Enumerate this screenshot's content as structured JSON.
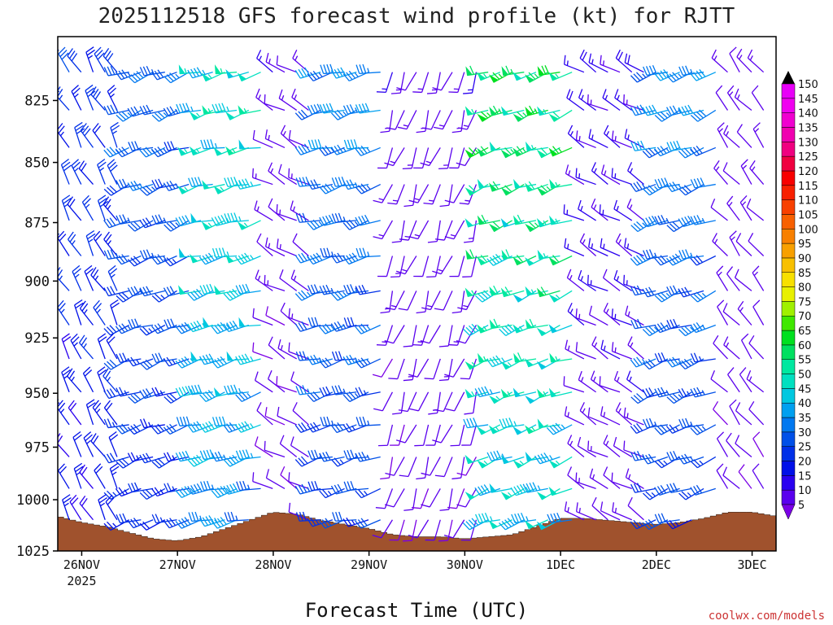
{
  "chart_data": {
    "type": "wind-barb-time-height",
    "title": "2025112518 GFS forecast wind profile (kt) for RJTT",
    "xlabel": "Forecast Time (UTC)",
    "ylabel": "",
    "credit": "coolwx.com/models",
    "x_ticks": [
      {
        "label": "26NOV",
        "sub": "2025",
        "hour": 6
      },
      {
        "label": "27NOV",
        "sub": "",
        "hour": 30
      },
      {
        "label": "28NOV",
        "sub": "",
        "hour": 54
      },
      {
        "label": "29NOV",
        "sub": "",
        "hour": 78
      },
      {
        "label": "30NOV",
        "sub": "",
        "hour": 102
      },
      {
        "label": "1DEC",
        "sub": "",
        "hour": 126
      },
      {
        "label": "2DEC",
        "sub": "",
        "hour": 150
      },
      {
        "label": "3DEC",
        "sub": "",
        "hour": 174
      }
    ],
    "x_range_hours": [
      0,
      180
    ],
    "y_ticks": [
      825,
      850,
      875,
      900,
      925,
      950,
      975,
      1000,
      1025
    ],
    "y_range_hpa": [
      800,
      1025
    ],
    "barb_levels_hpa": [
      810,
      825,
      840,
      855,
      870,
      885,
      900,
      915,
      930,
      945,
      960,
      975,
      990,
      1005
    ],
    "barb_step_hours": 3,
    "colorbar": {
      "levels": [
        5,
        10,
        15,
        20,
        25,
        30,
        35,
        40,
        45,
        50,
        55,
        60,
        65,
        70,
        75,
        80,
        85,
        90,
        95,
        100,
        105,
        110,
        115,
        120,
        125,
        130,
        135,
        140,
        145,
        150
      ],
      "colors": [
        "#7a00e6",
        "#5a00ee",
        "#2a00f0",
        "#0010e8",
        "#0030e8",
        "#0050e8",
        "#0078f0",
        "#00a0f0",
        "#00c8e0",
        "#00e0c0",
        "#00e8a0",
        "#00e060",
        "#00e020",
        "#40e800",
        "#a0f000",
        "#e8f000",
        "#f8e000",
        "#f8c000",
        "#f8a000",
        "#f88000",
        "#f86000",
        "#f84000",
        "#f82000",
        "#f80000",
        "#f00040",
        "#f00080",
        "#f000b0",
        "#f000d0",
        "#f000f0",
        "#e800f8"
      ]
    },
    "surface_pressure_hpa": [
      {
        "h": 0,
        "p": 1008
      },
      {
        "h": 6,
        "p": 1011
      },
      {
        "h": 12,
        "p": 1013
      },
      {
        "h": 18,
        "p": 1016
      },
      {
        "h": 24,
        "p": 1019
      },
      {
        "h": 30,
        "p": 1020
      },
      {
        "h": 36,
        "p": 1018
      },
      {
        "h": 42,
        "p": 1014
      },
      {
        "h": 48,
        "p": 1010
      },
      {
        "h": 54,
        "p": 1006
      },
      {
        "h": 60,
        "p": 1007
      },
      {
        "h": 66,
        "p": 1010
      },
      {
        "h": 72,
        "p": 1012
      },
      {
        "h": 78,
        "p": 1014
      },
      {
        "h": 84,
        "p": 1017
      },
      {
        "h": 90,
        "p": 1018
      },
      {
        "h": 96,
        "p": 1018
      },
      {
        "h": 102,
        "p": 1019
      },
      {
        "h": 108,
        "p": 1018
      },
      {
        "h": 114,
        "p": 1017
      },
      {
        "h": 120,
        "p": 1013
      },
      {
        "h": 126,
        "p": 1009
      },
      {
        "h": 132,
        "p": 1009
      },
      {
        "h": 138,
        "p": 1010
      },
      {
        "h": 144,
        "p": 1011
      },
      {
        "h": 150,
        "p": 1012
      },
      {
        "h": 156,
        "p": 1011
      },
      {
        "h": 162,
        "p": 1009
      },
      {
        "h": 168,
        "p": 1006
      },
      {
        "h": 174,
        "p": 1006
      },
      {
        "h": 180,
        "p": 1008
      }
    ],
    "wind_regimes": [
      {
        "h0": 0,
        "h1": 18,
        "dir": 330,
        "speed": 20
      },
      {
        "h0": 18,
        "h1": 36,
        "dir": 250,
        "speed": 25
      },
      {
        "h0": 36,
        "h1": 54,
        "dir": 255,
        "speed": 38
      },
      {
        "h0": 54,
        "h1": 66,
        "dir": 300,
        "speed": 10
      },
      {
        "h0": 66,
        "h1": 84,
        "dir": 255,
        "speed": 28
      },
      {
        "h0": 84,
        "h1": 108,
        "dir": 200,
        "speed": 10
      },
      {
        "h0": 108,
        "h1": 132,
        "dir": 250,
        "speed": 45
      },
      {
        "h0": 132,
        "h1": 150,
        "dir": 300,
        "speed": 12
      },
      {
        "h0": 150,
        "h1": 168,
        "dir": 250,
        "speed": 28
      },
      {
        "h0": 168,
        "h1": 180,
        "dir": 320,
        "speed": 10
      }
    ]
  }
}
